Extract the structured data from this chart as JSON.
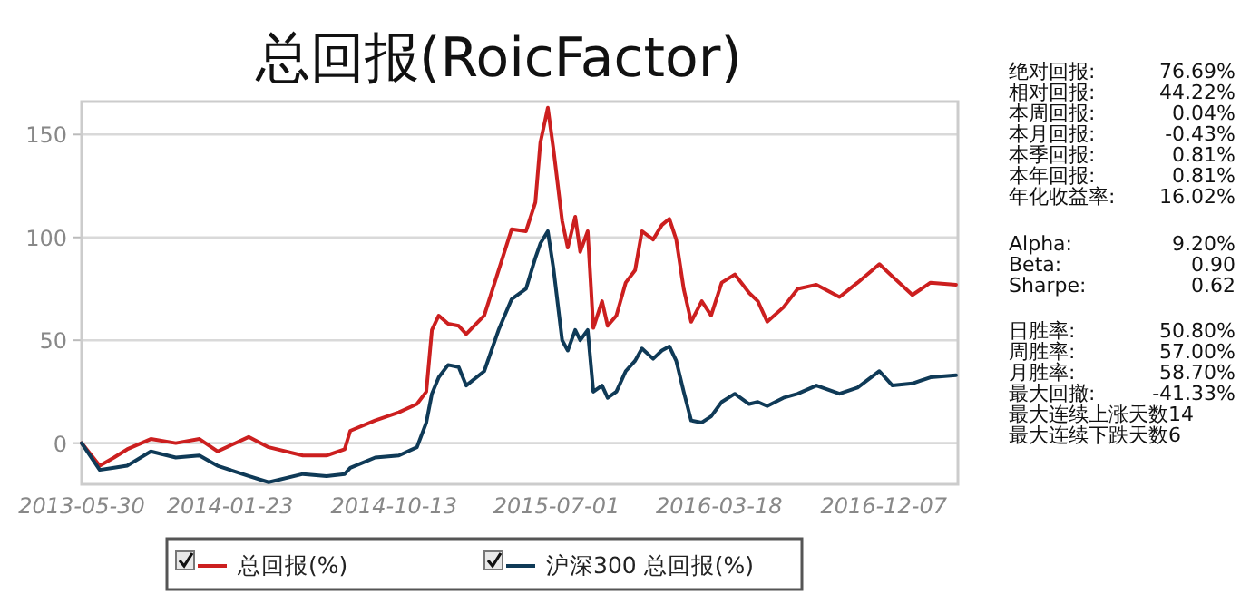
{
  "chart_data": [
    {
      "type": "line",
      "title": "总回报(RoicFactor)",
      "x": [
        "2013-05-30",
        "2013-06-28",
        "2013-07-21",
        "2013-08-11",
        "2013-09-18",
        "2013-10-28",
        "2013-12-05",
        "2014-01-03",
        "2014-02-22",
        "2014-03-26",
        "2014-05-20",
        "2014-06-27",
        "2014-07-26",
        "2014-08-04",
        "2014-09-13",
        "2014-10-21",
        "2014-11-19",
        "2014-12-04",
        "2014-12-13",
        "2014-12-24",
        "2015-01-08",
        "2015-01-25",
        "2015-02-06",
        "2015-03-07",
        "2015-03-30",
        "2015-04-20",
        "2015-05-13",
        "2015-05-28",
        "2015-06-05",
        "2015-06-17",
        "2015-06-26",
        "2015-07-10",
        "2015-07-19",
        "2015-07-31",
        "2015-08-08",
        "2015-08-20",
        "2015-08-29",
        "2015-09-12",
        "2015-09-21",
        "2015-10-05",
        "2015-10-20",
        "2015-11-04",
        "2015-11-15",
        "2015-12-03",
        "2015-12-17",
        "2015-12-29",
        "2016-01-09",
        "2016-01-21",
        "2016-02-02",
        "2016-02-19",
        "2016-03-05",
        "2016-03-22",
        "2016-04-12",
        "2016-05-05",
        "2016-05-19",
        "2016-06-03",
        "2016-06-29",
        "2016-07-22",
        "2016-08-21",
        "2016-09-27",
        "2016-10-26",
        "2016-11-30",
        "2016-12-21",
        "2017-01-22",
        "2017-02-20",
        "2017-04-02"
      ],
      "series": [
        {
          "name": "总回报(%)",
          "color": "#cc1f1f",
          "values": [
            0,
            -11,
            -7,
            -3,
            2,
            0,
            2,
            -4,
            3,
            -2,
            -6,
            -6,
            -3,
            6,
            11,
            15,
            19,
            25,
            55,
            62,
            58,
            57,
            53,
            62,
            84,
            104,
            103,
            117,
            146,
            163,
            143,
            108,
            95,
            110,
            93,
            103,
            56,
            69,
            57,
            62,
            78,
            84,
            103,
            99,
            106,
            109,
            99,
            75,
            59,
            69,
            62,
            78,
            82,
            73,
            69,
            59,
            66,
            75,
            77,
            71,
            78,
            87,
            81,
            72,
            78,
            77
          ]
        },
        {
          "name": "沪深300 总回报(%)",
          "color": "#0f3a57",
          "values": [
            0,
            -13,
            -12,
            -11,
            -4,
            -7,
            -6,
            -11,
            -16,
            -19,
            -15,
            -16,
            -15,
            -12,
            -7,
            -6,
            -2,
            10,
            24,
            32,
            38,
            37,
            28,
            35,
            55,
            70,
            75,
            90,
            97,
            103,
            85,
            50,
            45,
            55,
            50,
            55,
            25,
            28,
            22,
            25,
            35,
            40,
            46,
            41,
            45,
            47,
            40,
            25,
            11,
            10,
            13,
            20,
            24,
            19,
            20,
            18,
            22,
            24,
            28,
            24,
            27,
            35,
            28,
            29,
            32,
            33
          ]
        }
      ],
      "xlim": [
        "2013-05-30",
        "2017-04-05"
      ],
      "xticks": [
        "2013-05-30",
        "2014-01-23",
        "2014-10-13",
        "2015-07-01",
        "2016-03-18",
        "2016-12-07"
      ],
      "ylim": [
        -20,
        166
      ],
      "yticks": [
        0,
        50,
        100,
        150
      ],
      "grid": "y",
      "legend": "bottom"
    },
    {
      "type": "other",
      "annotations": [
        "绝对回报:",
        "76.69%",
        "相对回报:",
        "44.22%",
        "本周回报:",
        "0.04%",
        "本月回报:",
        "-0.43%",
        "本季回报:",
        "0.81%",
        "本年回报:",
        "0.81%",
        "年化收益率:",
        "16.02%",
        "Alpha:",
        "9.20%",
        "Beta:",
        "0.90",
        "Sharpe:",
        "0.62",
        "日胜率:",
        "50.80%",
        "周胜率:",
        "57.00%",
        "月胜率:",
        "58.70%",
        "最大回撤:",
        "-41.33%",
        "最大连续上涨天数14",
        "最大连续下跌天数6"
      ]
    }
  ]
}
